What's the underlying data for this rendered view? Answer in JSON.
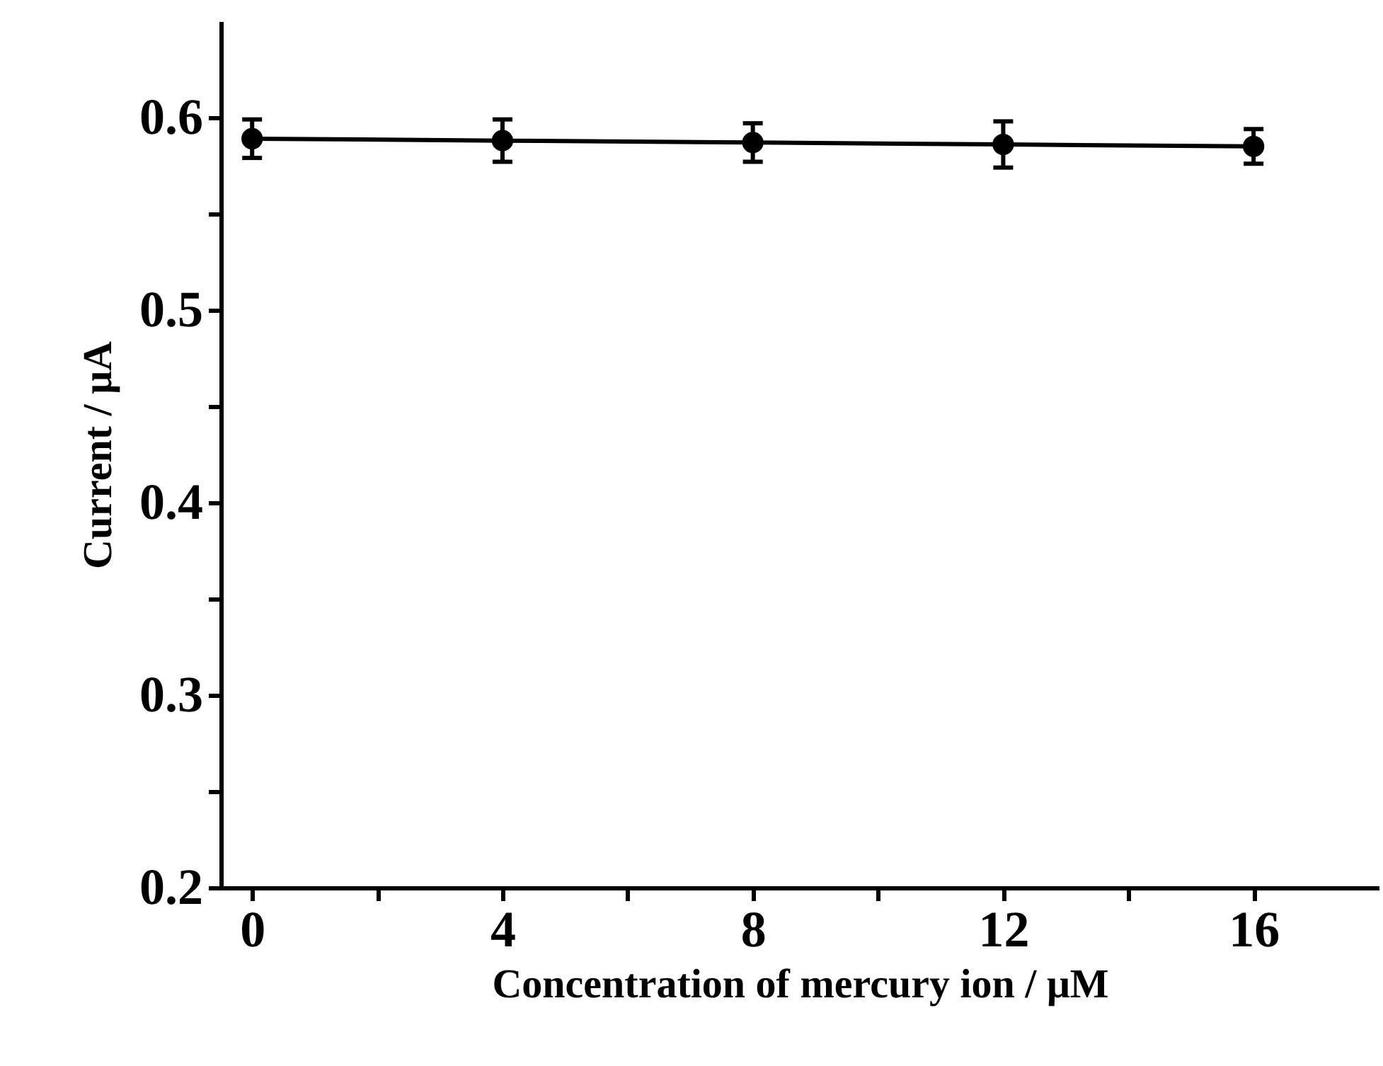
{
  "chart_data": {
    "type": "line",
    "xlabel": "Concentration of mercury ion / μM",
    "ylabel": "Current / μA",
    "x": [
      0,
      4,
      8,
      12,
      16
    ],
    "values": [
      0.589,
      0.588,
      0.587,
      0.586,
      0.585
    ],
    "errors": [
      0.01,
      0.011,
      0.01,
      0.012,
      0.009
    ],
    "color": "#000000",
    "xlim": [
      -0.5,
      18
    ],
    "ylim": [
      0.2,
      0.65
    ],
    "xticks": [
      0,
      {
        "value": 2,
        "label": null
      },
      4,
      {
        "value": 6,
        "label": null
      },
      8,
      {
        "value": 10,
        "label": null
      },
      12,
      {
        "value": 14,
        "label": null
      },
      16
    ],
    "yticks": [
      {
        "value": 0.2,
        "label": "0.2"
      },
      {
        "value": 0.25,
        "label": null
      },
      {
        "value": 0.3,
        "label": "0.3"
      },
      {
        "value": 0.35,
        "label": null
      },
      {
        "value": 0.4,
        "label": "0.4"
      },
      {
        "value": 0.45,
        "label": null
      },
      {
        "value": 0.5,
        "label": "0.5"
      },
      {
        "value": 0.55,
        "label": null
      },
      {
        "value": 0.6,
        "label": "0.6"
      }
    ],
    "marker": "circle",
    "line_style": "solid",
    "grid": false
  }
}
